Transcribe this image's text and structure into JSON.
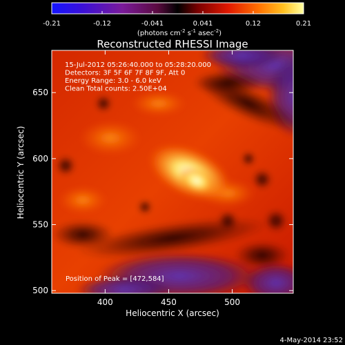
{
  "chart_data": {
    "type": "heatmap",
    "title": "Reconstructed RHESSI Image",
    "xlabel": "Heliocentric X (arcsec)",
    "ylabel": "Heliocentric Y (arcsec)",
    "xlim": [
      358,
      548
    ],
    "ylim": [
      498,
      682
    ],
    "xticks": [
      400,
      450,
      500
    ],
    "yticks": [
      500,
      550,
      600,
      650
    ],
    "colorbar": {
      "range": [
        -0.21,
        0.21
      ],
      "ticks": [
        "-0.21",
        "-0.12",
        "-0.041",
        "0.041",
        "0.12",
        "0.21"
      ],
      "unit_text": "(photons cm",
      "unit_exp1": "-2",
      "unit_mid": " s",
      "unit_exp2": "-1",
      "unit_mid2": " asec",
      "unit_exp3": "-2",
      "unit_close": ")"
    },
    "annotations": [
      "15-Jul-2012 05:26:40.000 to 05:28:20.000",
      "Detectors: 3F 5F 6F 7F 8F 9F, Att 0",
      "Energy Range: 3.0 - 6.0 keV",
      "Clean     Total counts: 2.50E+04"
    ],
    "peak": {
      "x": 472,
      "y": 584,
      "label": "Position of Peak = [472,584]"
    },
    "timestamp": "4-May-2014 23:52"
  }
}
